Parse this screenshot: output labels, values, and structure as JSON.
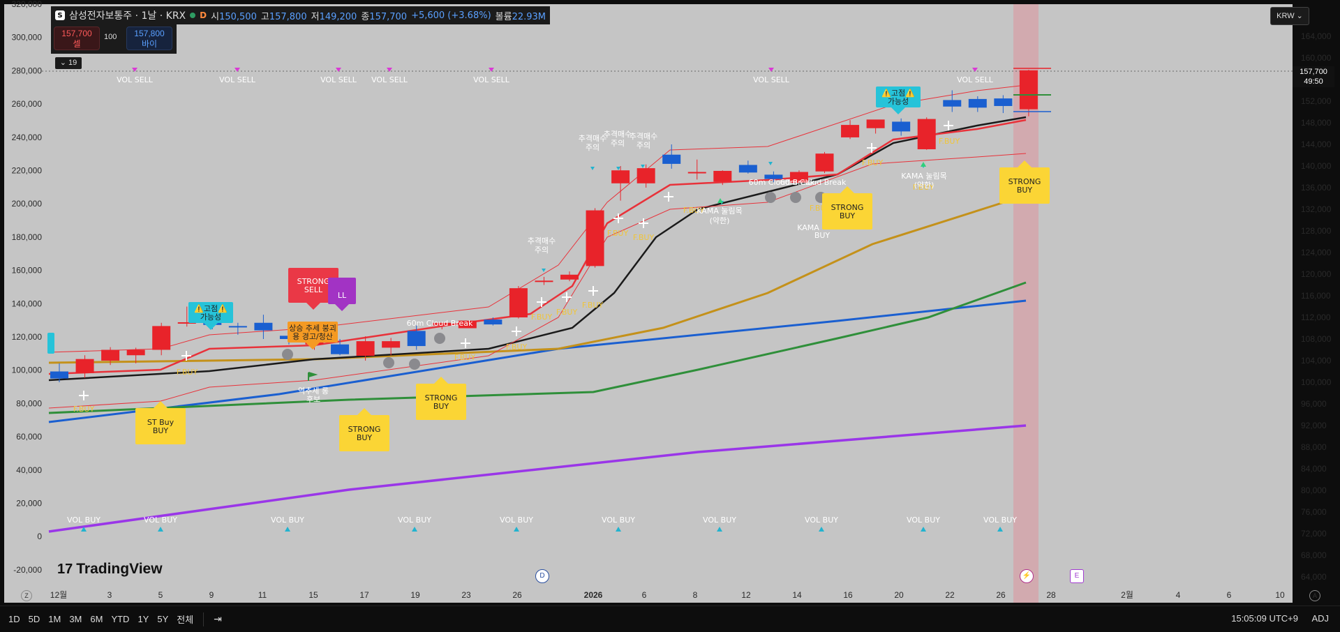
{
  "header": {
    "symbol_badge": "S",
    "title": "삼성전자보통주 · 1날 · KRX",
    "market_flag": "D",
    "open_label": "시",
    "open": "150,500",
    "high_label": "고",
    "high": "157,800",
    "low_label": "저",
    "low": "149,200",
    "close_label": "종",
    "close": "157,700",
    "change": "+5,600 (+3.68%)",
    "volume_label": "볼륨",
    "volume": "22.93M"
  },
  "trade": {
    "sell_price": "157,700",
    "sell_label": "셀",
    "quantity": "100",
    "buy_price": "157,800",
    "buy_label": "바이"
  },
  "indicators_toggle": "19",
  "currency": "KRW",
  "last_price": {
    "price": "157,700",
    "countdown": "49:50"
  },
  "left_axis": [
    "320,000",
    "300,000",
    "280,000",
    "260,000",
    "240,000",
    "220,000",
    "200,000",
    "180,000",
    "160,000",
    "140,000",
    "120,000",
    "100,000",
    "80,000",
    "60,000",
    "40,000",
    "20,000",
    "0",
    "-20,000"
  ],
  "right_axis": [
    "164,000",
    "160,000",
    "156,000",
    "152,000",
    "148,000",
    "144,000",
    "140,000",
    "136,000",
    "132,000",
    "128,000",
    "124,000",
    "120,000",
    "116,000",
    "112,000",
    "108,000",
    "104,000",
    "100,000",
    "96,000",
    "92,000",
    "88,000",
    "84,000",
    "80,000",
    "76,000",
    "72,000",
    "68,000",
    "64,000"
  ],
  "x_axis": [
    "12월",
    "3",
    "5",
    "9",
    "11",
    "15",
    "17",
    "19",
    "23",
    "26",
    "2026",
    "6",
    "8",
    "12",
    "14",
    "16",
    "20",
    "22",
    "26",
    "28",
    "2월",
    "4",
    "6",
    "10"
  ],
  "signals": {
    "vol_sell": "VOL SELL",
    "vol_buy": "VOL BUY",
    "strong_buy": [
      "STRONG",
      "BUY"
    ],
    "strong_sell": [
      "STRONG",
      "SELL"
    ],
    "st_buy": "ST Buy",
    "fbuy": "F.BUY",
    "chase_warn": [
      "추격매수",
      "주의"
    ],
    "fixed_top": [
      "⚠️고점⚠️",
      "가능성"
    ],
    "trend_break": [
      "상승 추세 붕괴",
      "용 경고/청산"
    ],
    "kama_pullback": [
      "KAMA 눌림목",
      "(약한)"
    ],
    "kama_buy": [
      "KAMA",
      "BUY"
    ],
    "bottom_candidate": [
      "역추세 롱",
      "후보"
    ],
    "cloud_break": "60m Cloud Break",
    "ll_tag": "LL"
  },
  "markers": {
    "dividend": "D",
    "earnings": "E",
    "z_button": "Z"
  },
  "branding": "TradingView",
  "toolbar": {
    "timeframes": [
      "1D",
      "5D",
      "1M",
      "3M",
      "6M",
      "YTD",
      "1Y",
      "5Y",
      "전체"
    ],
    "clock": "15:05:09 UTC+9",
    "adjust": "ADJ"
  },
  "colors": {
    "plot_bg": "#c5c5c5",
    "up_candle": "#e8232a",
    "down_candle": "#1a5fd0",
    "black_line": "#1a1a1a",
    "gold_line": "#c4911a",
    "green_line": "#2f8f3a",
    "blue_line": "#1a5fd0",
    "purple_line": "#9a36e8",
    "red_ma": "#e8323a",
    "signal_yellow": "#fbd535",
    "signal_cyan": "#26c3d9",
    "signal_red": "#ea3846",
    "signal_purple": "#a233c4"
  },
  "chart_data": {
    "type": "candlestick",
    "title": "삼성전자보통주 · 1날 · KRX",
    "x_first": "12월",
    "x_last": "2026-01-27",
    "ylim_right": [
      64000,
      164000
    ],
    "candles": [
      {
        "o": 102000,
        "h": 103500,
        "l": 100000,
        "c": 100700
      },
      {
        "o": 101700,
        "h": 105000,
        "l": 100800,
        "c": 104300
      },
      {
        "o": 104000,
        "h": 106500,
        "l": 103200,
        "c": 106000
      },
      {
        "o": 105000,
        "h": 106400,
        "l": 103500,
        "c": 106000
      },
      {
        "o": 106000,
        "h": 111000,
        "l": 105000,
        "c": 110400
      },
      {
        "o": 111000,
        "h": 114000,
        "l": 110300,
        "c": 111100
      },
      {
        "o": 111000,
        "h": 112000,
        "l": 109800,
        "c": 110600
      },
      {
        "o": 110400,
        "h": 111000,
        "l": 108800,
        "c": 110200
      },
      {
        "o": 111000,
        "h": 112500,
        "l": 108000,
        "c": 109600
      },
      {
        "o": 108600,
        "h": 109800,
        "l": 107000,
        "c": 108000
      },
      {
        "o": 107000,
        "h": 108300,
        "l": 106000,
        "c": 107600
      },
      {
        "o": 107000,
        "h": 108000,
        "l": 105000,
        "c": 105200
      },
      {
        "o": 104900,
        "h": 108500,
        "l": 104000,
        "c": 107600
      },
      {
        "o": 106400,
        "h": 108200,
        "l": 105000,
        "c": 107600
      },
      {
        "o": 109500,
        "h": 110500,
        "l": 106000,
        "c": 106700
      },
      {
        "o": 110500,
        "h": 111000,
        "l": 109800,
        "c": 111000
      },
      {
        "o": 110000,
        "h": 111300,
        "l": 110000,
        "c": 111400
      },
      {
        "o": 111600,
        "h": 112000,
        "l": 110500,
        "c": 110700
      },
      {
        "o": 112000,
        "h": 117800,
        "l": 111800,
        "c": 117400
      },
      {
        "o": 118800,
        "h": 119500,
        "l": 118000,
        "c": 118800
      },
      {
        "o": 119000,
        "h": 120500,
        "l": 118700,
        "c": 119900
      },
      {
        "o": 121500,
        "h": 132200,
        "l": 121200,
        "c": 131800
      },
      {
        "o": 136800,
        "h": 140000,
        "l": 133600,
        "c": 139200
      },
      {
        "o": 136800,
        "h": 140300,
        "l": 136000,
        "c": 139600
      },
      {
        "o": 142100,
        "h": 144000,
        "l": 139500,
        "c": 140400
      },
      {
        "o": 138700,
        "h": 141200,
        "l": 137500,
        "c": 138900
      },
      {
        "o": 137100,
        "h": 139200,
        "l": 136500,
        "c": 139100
      },
      {
        "o": 140200,
        "h": 141000,
        "l": 138600,
        "c": 138800
      },
      {
        "o": 138400,
        "h": 139000,
        "l": 137000,
        "c": 137600
      },
      {
        "o": 136900,
        "h": 139200,
        "l": 136800,
        "c": 138900
      },
      {
        "o": 139000,
        "h": 142600,
        "l": 138700,
        "c": 142300
      },
      {
        "o": 145300,
        "h": 148500,
        "l": 145000,
        "c": 147600
      },
      {
        "o": 147000,
        "h": 148200,
        "l": 146000,
        "c": 148600
      },
      {
        "o": 148200,
        "h": 148800,
        "l": 145600,
        "c": 146400
      },
      {
        "o": 143100,
        "h": 149000,
        "l": 143000,
        "c": 148700
      },
      {
        "o": 152200,
        "h": 154000,
        "l": 150000,
        "c": 151000
      },
      {
        "o": 152400,
        "h": 152900,
        "l": 150000,
        "c": 150800
      },
      {
        "o": 152500,
        "h": 153100,
        "l": 149800,
        "c": 151100
      },
      {
        "o": 150500,
        "h": 157800,
        "l": 149200,
        "c": 157700
      }
    ]
  }
}
